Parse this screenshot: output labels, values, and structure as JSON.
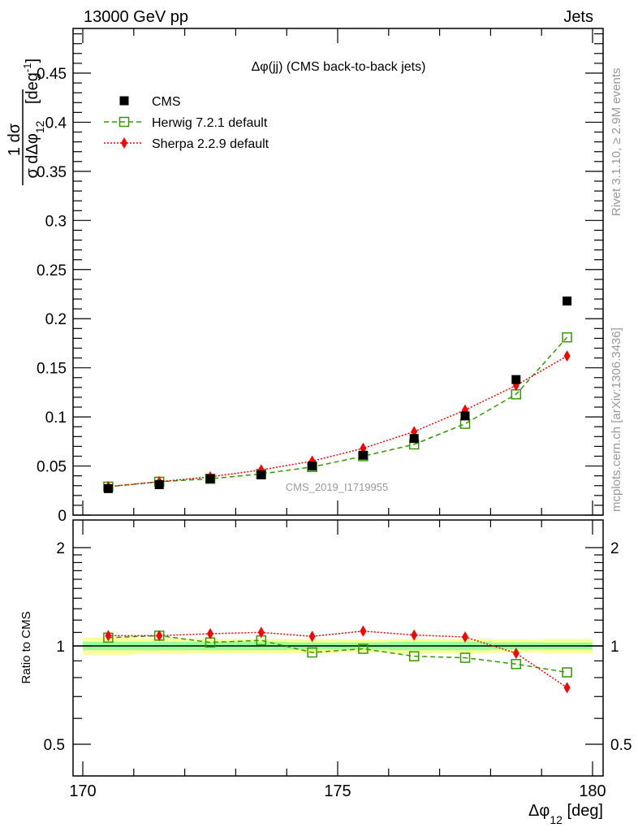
{
  "header": {
    "left": "13000 GeV pp",
    "right": "Jets"
  },
  "side_text": {
    "rivet": "Rivet 3.1.10, ≥ 2.9M events",
    "mcplots": "mcplots.cern.ch [arXiv:1306.3436]"
  },
  "colors": {
    "cms": "#000000",
    "herwig": "#339900",
    "sherpa": "#ff0000",
    "band_outer": "#ffff99",
    "band_inner": "#99ff99",
    "watermark": "#999999"
  },
  "chart_data": [
    {
      "type": "scatter",
      "title": "Δφ(jj) (CMS back-to-back jets)",
      "analysis_label": "CMS_2019_I1719955",
      "ylabel": {
        "num": "1  dσ",
        "den": "σ dΔφ",
        "den_sub": "12",
        "unit": "[deg",
        "unit_sup": "-1",
        "unit_close": "]"
      },
      "xlim": [
        170,
        180
      ],
      "ylim": [
        0,
        0.495
      ],
      "yticks": [
        "0",
        "0.05",
        "0.1",
        "0.15",
        "0.2",
        "0.25",
        "0.3",
        "0.35",
        "0.4",
        "0.45"
      ],
      "legend_position": "top-left",
      "x": [
        170.5,
        171.5,
        172.5,
        173.5,
        174.5,
        175.5,
        176.5,
        177.5,
        178.5,
        179.5
      ],
      "series": [
        {
          "name": "CMS",
          "key": "cms",
          "values": [
            0.027,
            0.031,
            0.037,
            0.041,
            0.05,
            0.061,
            0.078,
            0.101,
            0.138,
            0.218
          ]
        },
        {
          "name": "Herwig 7.2.1 default",
          "key": "herwig",
          "values": [
            0.029,
            0.034,
            0.037,
            0.042,
            0.049,
            0.06,
            0.072,
            0.093,
            0.123,
            0.181
          ]
        },
        {
          "name": "Sherpa 2.2.9 default",
          "key": "sherpa",
          "values": [
            0.029,
            0.034,
            0.039,
            0.046,
            0.055,
            0.068,
            0.085,
            0.107,
            0.132,
            0.162
          ]
        }
      ]
    },
    {
      "type": "scatter",
      "ylabel": "Ratio to CMS",
      "xlabel": {
        "main": "Δφ",
        "sub": "12",
        "unit": " [deg]"
      },
      "xlim": [
        170,
        180
      ],
      "ylim": [
        0.4,
        2.3
      ],
      "yscale": "log",
      "xticks": [
        "170",
        "175",
        "180"
      ],
      "yticks": [
        "0.5",
        "1",
        "2"
      ],
      "x": [
        170.5,
        171.5,
        172.5,
        173.5,
        174.5,
        175.5,
        176.5,
        177.5,
        178.5,
        179.5
      ],
      "band_outer": [
        0.06,
        0.055,
        0.05,
        0.05,
        0.05,
        0.045,
        0.05,
        0.05,
        0.045,
        0.05
      ],
      "band_inner": [
        0.03,
        0.03,
        0.03,
        0.03,
        0.025,
        0.025,
        0.03,
        0.03,
        0.025,
        0.025
      ],
      "series": [
        {
          "name": "Herwig 7.2.1 default",
          "key": "herwig",
          "values": [
            1.06,
            1.075,
            1.025,
            1.04,
            0.955,
            0.98,
            0.93,
            0.92,
            0.88,
            0.83
          ]
        },
        {
          "name": "Sherpa 2.2.9 default",
          "key": "sherpa",
          "values": [
            1.075,
            1.075,
            1.09,
            1.1,
            1.07,
            1.11,
            1.08,
            1.065,
            0.95,
            0.745
          ]
        }
      ]
    }
  ]
}
